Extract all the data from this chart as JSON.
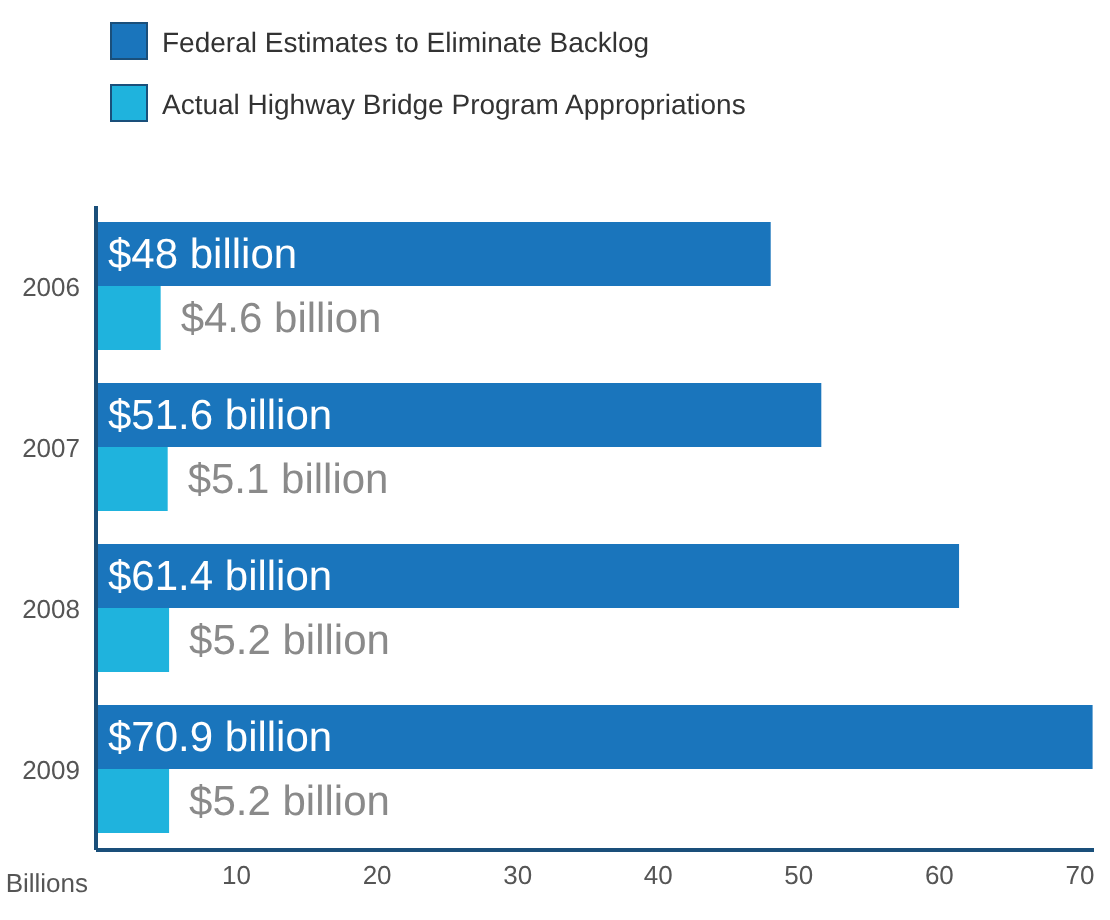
{
  "chart_data": {
    "type": "bar",
    "orientation": "horizontal",
    "categories": [
      "2006",
      "2007",
      "2008",
      "2009"
    ],
    "series": [
      {
        "name": "Federal Estimates to Eliminate Backlog",
        "color": "#1a75bc",
        "values": [
          48,
          51.6,
          61.4,
          70.9
        ],
        "value_labels": [
          "$48 billion",
          "$51.6 billion",
          "$61.4 billion",
          "$70.9 billion"
        ]
      },
      {
        "name": "Actual Highway Bridge Program Appropriations",
        "color": "#1fb3dd",
        "values": [
          4.6,
          5.1,
          5.2,
          5.2
        ],
        "value_labels": [
          "$4.6 billion",
          "$5.1 billion",
          "$5.2 billion",
          "$5.2 billion"
        ]
      }
    ],
    "xlabel": "Billions",
    "xlim": [
      0,
      71
    ],
    "xticks": [
      10,
      20,
      30,
      40,
      50,
      60,
      70
    ],
    "legend": "top left",
    "grid": false
  }
}
